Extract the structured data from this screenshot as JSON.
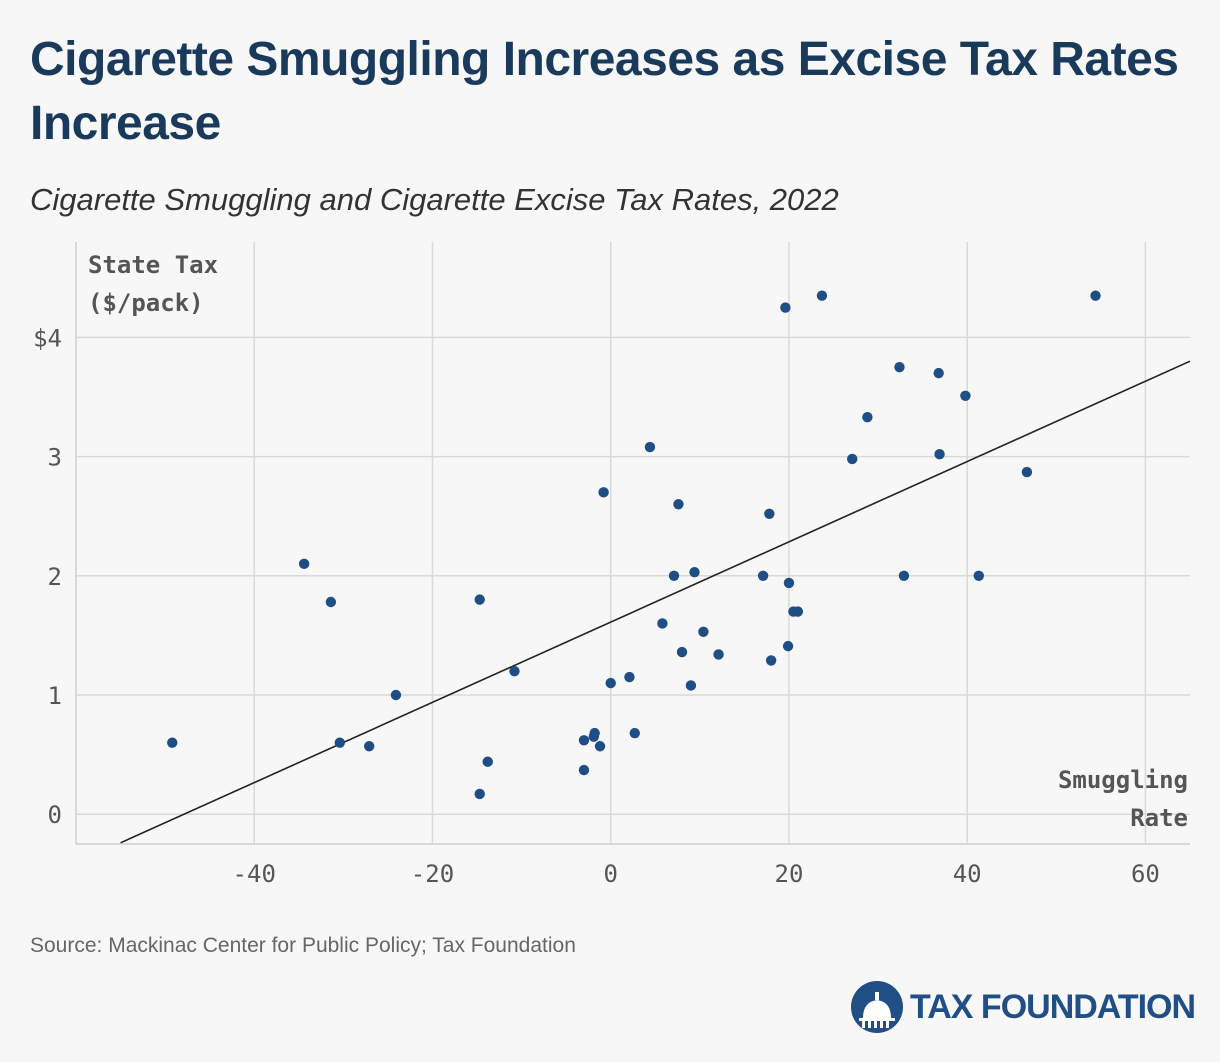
{
  "header": {
    "title": "Cigarette Smuggling Increases as Excise Tax Rates Increase",
    "subtitle": "Cigarette Smuggling and Cigarette Excise Tax Rates, 2022"
  },
  "footer": {
    "source": "Source: Mackinac Center for Public Policy; Tax Foundation",
    "logo_text": "TAX FOUNDATION"
  },
  "colors": {
    "point": "#1f4e85",
    "trend": "#222222",
    "grid": "#d9d9d9",
    "title": "#1a3a5c"
  },
  "chart_data": {
    "type": "scatter",
    "title": "Cigarette Smuggling Increases as Excise Tax Rates Increase",
    "subtitle": "Cigarette Smuggling and Cigarette Excise Tax Rates, 2022",
    "xlabel_lines": [
      "Smuggling",
      "Rate"
    ],
    "ylabel_lines": [
      "State Tax",
      "($/pack)"
    ],
    "xlim": [
      -60,
      65
    ],
    "ylim": [
      -0.25,
      4.8
    ],
    "x_ticks": [
      -40,
      -20,
      0,
      20,
      40,
      60
    ],
    "x_tick_labels": [
      "-40",
      "-20",
      "0",
      "20",
      "40",
      "60"
    ],
    "y_ticks": [
      0,
      1,
      2,
      3,
      4
    ],
    "y_tick_labels": [
      "0",
      "1",
      "2",
      "3",
      "$4"
    ],
    "grid": true,
    "trendline": {
      "x": [
        -55,
        65
      ],
      "y": [
        -0.24,
        3.8
      ]
    },
    "points": [
      {
        "x": -49.2,
        "y": 0.6
      },
      {
        "x": -34.4,
        "y": 2.1
      },
      {
        "x": -31.4,
        "y": 1.78
      },
      {
        "x": -30.4,
        "y": 0.6
      },
      {
        "x": -27.1,
        "y": 0.57
      },
      {
        "x": -24.1,
        "y": 1.0
      },
      {
        "x": -14.7,
        "y": 1.8
      },
      {
        "x": -14.7,
        "y": 0.17
      },
      {
        "x": -13.8,
        "y": 0.44
      },
      {
        "x": -10.8,
        "y": 1.2
      },
      {
        "x": -3.0,
        "y": 0.62
      },
      {
        "x": -3.0,
        "y": 0.37
      },
      {
        "x": -1.9,
        "y": 0.65
      },
      {
        "x": -1.8,
        "y": 0.68
      },
      {
        "x": -1.2,
        "y": 0.57
      },
      {
        "x": -0.8,
        "y": 2.7
      },
      {
        "x": 0.0,
        "y": 1.1
      },
      {
        "x": 2.1,
        "y": 1.15
      },
      {
        "x": 2.7,
        "y": 0.68
      },
      {
        "x": 4.4,
        "y": 3.08
      },
      {
        "x": 5.8,
        "y": 1.6
      },
      {
        "x": 7.1,
        "y": 2.0
      },
      {
        "x": 7.6,
        "y": 2.6
      },
      {
        "x": 8.0,
        "y": 1.36
      },
      {
        "x": 9.0,
        "y": 1.08
      },
      {
        "x": 9.4,
        "y": 2.03
      },
      {
        "x": 10.4,
        "y": 1.53
      },
      {
        "x": 12.1,
        "y": 1.34
      },
      {
        "x": 17.1,
        "y": 2.0
      },
      {
        "x": 17.8,
        "y": 2.52
      },
      {
        "x": 18.0,
        "y": 1.29
      },
      {
        "x": 19.6,
        "y": 4.25
      },
      {
        "x": 19.9,
        "y": 1.41
      },
      {
        "x": 20.0,
        "y": 1.94
      },
      {
        "x": 20.5,
        "y": 1.7
      },
      {
        "x": 21.0,
        "y": 1.7
      },
      {
        "x": 23.7,
        "y": 4.35
      },
      {
        "x": 27.1,
        "y": 2.98
      },
      {
        "x": 28.8,
        "y": 3.33
      },
      {
        "x": 32.4,
        "y": 3.75
      },
      {
        "x": 32.9,
        "y": 2.0
      },
      {
        "x": 36.8,
        "y": 3.7
      },
      {
        "x": 36.9,
        "y": 3.02
      },
      {
        "x": 39.8,
        "y": 3.51
      },
      {
        "x": 41.3,
        "y": 2.0
      },
      {
        "x": 46.7,
        "y": 2.87
      },
      {
        "x": 54.4,
        "y": 4.35
      }
    ]
  }
}
